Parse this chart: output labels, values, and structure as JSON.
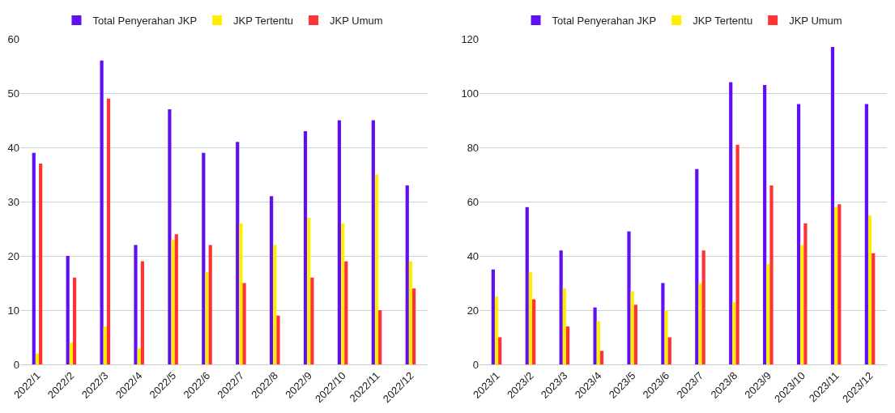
{
  "chart_data": [
    {
      "type": "bar",
      "categories": [
        "2022/1",
        "2022/2",
        "2022/3",
        "2022/4",
        "2022/5",
        "2022/6",
        "2022/7",
        "2022/8",
        "2022/9",
        "2022/10",
        "2022/11",
        "2022/12"
      ],
      "series": [
        {
          "name": "Total Penyerahan JKP",
          "color": "#6010f0",
          "values": [
            39,
            20,
            56,
            22,
            47,
            39,
            41,
            31,
            43,
            45,
            45,
            33
          ]
        },
        {
          "name": "JKP Tertentu",
          "color": "#ffee00",
          "values": [
            2,
            4,
            7,
            3,
            23,
            17,
            26,
            22,
            27,
            26,
            35,
            19
          ]
        },
        {
          "name": "JKP Umum",
          "color": "#ff3333",
          "values": [
            37,
            16,
            49,
            19,
            24,
            22,
            15,
            9,
            16,
            19,
            10,
            14
          ]
        }
      ],
      "ylim": [
        0,
        60
      ],
      "yticks": [
        0,
        10,
        20,
        30,
        40,
        50,
        60
      ],
      "grid": "y",
      "legend": "top"
    },
    {
      "type": "bar",
      "categories": [
        "2023/1",
        "2023/2",
        "2023/3",
        "2023/4",
        "2023/5",
        "2023/6",
        "2023/7",
        "2023/8",
        "2023/9",
        "2023/10",
        "2023/11",
        "2023/12"
      ],
      "series": [
        {
          "name": "Total Penyerahan JKP",
          "color": "#6010f0",
          "values": [
            35,
            58,
            42,
            21,
            49,
            30,
            72,
            104,
            103,
            96,
            117,
            96
          ]
        },
        {
          "name": "JKP Tertentu",
          "color": "#ffee00",
          "values": [
            25,
            34,
            28,
            16,
            27,
            20,
            30,
            23,
            37,
            44,
            58,
            55
          ]
        },
        {
          "name": "JKP Umum",
          "color": "#ff3333",
          "values": [
            10,
            24,
            14,
            5,
            22,
            10,
            42,
            81,
            66,
            52,
            59,
            41
          ]
        }
      ],
      "ylim": [
        0,
        120
      ],
      "yticks": [
        0,
        20,
        40,
        60,
        80,
        100,
        120
      ],
      "grid": "y",
      "legend": "top"
    }
  ]
}
